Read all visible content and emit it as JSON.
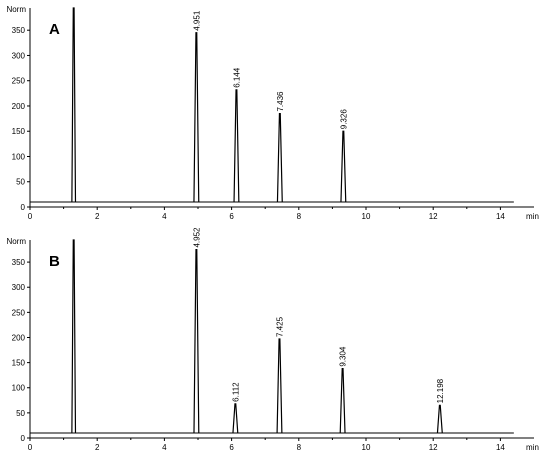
{
  "chart_data": [
    {
      "type": "line",
      "panel_label": "A",
      "ylabel": "Norm",
      "xlabel": "min",
      "xlim": [
        0,
        15
      ],
      "ylim": [
        0,
        390
      ],
      "x_ticks": [
        0,
        2,
        4,
        6,
        8,
        10,
        12,
        14
      ],
      "y_ticks": [
        0,
        50,
        100,
        150,
        200,
        250,
        300,
        350
      ],
      "baseline": 10,
      "peaks": [
        {
          "t": 1.3,
          "height": 390,
          "label": ""
        },
        {
          "t": 4.951,
          "height": 345,
          "label": "4.951"
        },
        {
          "t": 6.144,
          "height": 232,
          "label": "6.144"
        },
        {
          "t": 7.436,
          "height": 185,
          "label": "7.436"
        },
        {
          "t": 9.326,
          "height": 150,
          "label": "9.326"
        }
      ]
    },
    {
      "type": "line",
      "panel_label": "B",
      "ylabel": "Norm",
      "xlabel": "min",
      "xlim": [
        0,
        15
      ],
      "ylim": [
        0,
        390
      ],
      "x_ticks": [
        0,
        2,
        4,
        6,
        8,
        10,
        12,
        14
      ],
      "y_ticks": [
        0,
        50,
        100,
        150,
        200,
        250,
        300,
        350
      ],
      "baseline": 10,
      "peaks": [
        {
          "t": 1.3,
          "height": 390,
          "label": ""
        },
        {
          "t": 4.952,
          "height": 375,
          "label": "4.952"
        },
        {
          "t": 6.112,
          "height": 68,
          "label": "6.112"
        },
        {
          "t": 7.425,
          "height": 197,
          "label": "7.425"
        },
        {
          "t": 9.304,
          "height": 138,
          "label": "9.304"
        },
        {
          "t": 12.198,
          "height": 65,
          "label": "12.198"
        }
      ]
    }
  ]
}
